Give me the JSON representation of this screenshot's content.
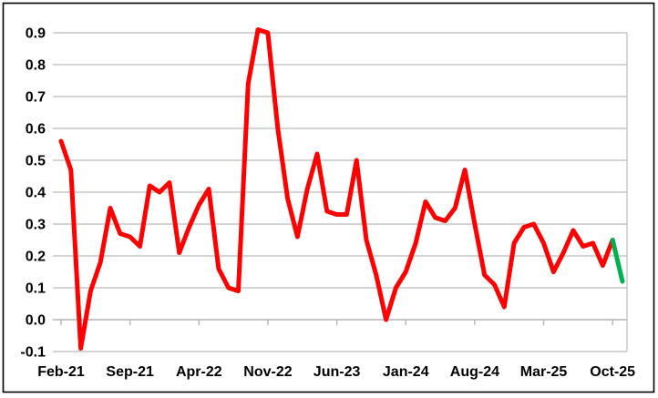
{
  "chart_data": {
    "type": "line",
    "title": "",
    "xlabel": "",
    "ylabel": "",
    "ylim": [
      -0.1,
      0.9
    ],
    "grid": true,
    "grid_color": "#c6c6c6",
    "zero_axis_color": "#b3b3b3",
    "x_months": [
      "Feb-21",
      "Mar-21",
      "Apr-21",
      "May-21",
      "Jun-21",
      "Jul-21",
      "Aug-21",
      "Sep-21",
      "Oct-21",
      "Nov-21",
      "Dec-21",
      "Jan-22",
      "Feb-22",
      "Mar-22",
      "Apr-22",
      "May-22",
      "Jun-22",
      "Jul-22",
      "Aug-22",
      "Sep-22",
      "Oct-22",
      "Nov-22",
      "Dec-22",
      "Jan-23",
      "Feb-23",
      "Mar-23",
      "Apr-23",
      "May-23",
      "Jun-23",
      "Jul-23",
      "Aug-23",
      "Sep-23",
      "Oct-23",
      "Nov-23",
      "Dec-23",
      "Jan-24",
      "Feb-24",
      "Mar-24",
      "Apr-24",
      "May-24",
      "Jun-24",
      "Jul-24",
      "Aug-24",
      "Sep-24",
      "Oct-24",
      "Nov-24",
      "Dec-24",
      "Jan-25",
      "Feb-25",
      "Mar-25",
      "Apr-25",
      "May-25",
      "Jun-25",
      "Jul-25",
      "Aug-25",
      "Sep-25",
      "Oct-25",
      "Nov-25"
    ],
    "series": [
      {
        "name": "history",
        "color": "#ff0000",
        "x_start_index": 0,
        "values": [
          0.56,
          0.47,
          -0.09,
          0.09,
          0.18,
          0.35,
          0.27,
          0.26,
          0.23,
          0.42,
          0.4,
          0.43,
          0.21,
          0.29,
          0.36,
          0.41,
          0.16,
          0.1,
          0.09,
          0.74,
          0.91,
          0.9,
          0.6,
          0.38,
          0.26,
          0.41,
          0.52,
          0.34,
          0.33,
          0.33,
          0.5,
          0.25,
          0.14,
          0.0,
          0.1,
          0.15,
          0.24,
          0.37,
          0.32,
          0.31,
          0.35,
          0.47,
          0.3,
          0.14,
          0.11,
          0.04,
          0.24,
          0.29,
          0.3,
          0.24,
          0.15,
          0.21,
          0.28,
          0.23,
          0.24,
          0.17,
          0.25
        ]
      },
      {
        "name": "latest",
        "color": "#00b050",
        "x_start_index": 56,
        "values": [
          0.25,
          0.12
        ]
      }
    ],
    "y_axis_ticks": [
      {
        "value": 0.9,
        "label": "0.9"
      },
      {
        "value": 0.8,
        "label": "0.8"
      },
      {
        "value": 0.7,
        "label": "0.7"
      },
      {
        "value": 0.6,
        "label": "0.6"
      },
      {
        "value": 0.5,
        "label": "0.5"
      },
      {
        "value": 0.4,
        "label": "0.4"
      },
      {
        "value": 0.3,
        "label": "0.3"
      },
      {
        "value": 0.2,
        "label": "0.2"
      },
      {
        "value": 0.1,
        "label": "0.1"
      },
      {
        "value": 0.0,
        "label": "0.0"
      },
      {
        "value": -0.1,
        "label": "-0.1"
      }
    ],
    "x_axis_tick_labels": [
      "Feb-21",
      "Sep-21",
      "Apr-22",
      "Nov-22",
      "Jun-23",
      "Jan-24",
      "Aug-24",
      "Mar-25",
      "Oct-25"
    ],
    "x_tick_every_n_months": 7,
    "legend": null
  }
}
